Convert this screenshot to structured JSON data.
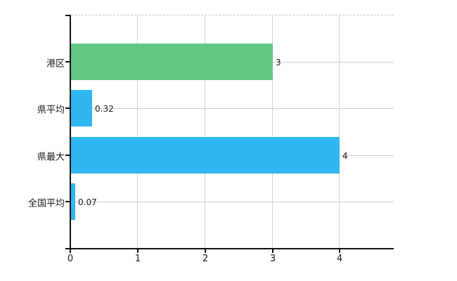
{
  "chart_data": {
    "type": "bar",
    "orientation": "horizontal",
    "title": "",
    "xlabel": "",
    "ylabel": "",
    "categories": [
      "港区",
      "県平均",
      "県最大",
      "全国平均"
    ],
    "values": [
      3,
      0.32,
      4,
      0.07
    ],
    "value_labels": [
      "3",
      "0.32",
      "4",
      "0.07"
    ],
    "bar_colors": [
      "#63c784",
      "#30b7f2",
      "#30b7f2",
      "#30b7f2"
    ],
    "x_tick_labels": [
      "0",
      "1",
      "2",
      "3",
      "4"
    ],
    "x_tick_values": [
      0,
      1,
      2,
      3,
      4
    ],
    "xlim": [
      0,
      4.8
    ],
    "grid": true,
    "legend": "none"
  },
  "colors": {
    "bar_green": "#63c784",
    "bar_blue": "#30b7f2",
    "axis": "#111111",
    "grid_vertical": "#d6d6d6",
    "grid_horizontal": "#cdd3c9",
    "plot_top_border": "#c6c6c6",
    "text": "#1a1a1a",
    "background": "#ffffff"
  }
}
